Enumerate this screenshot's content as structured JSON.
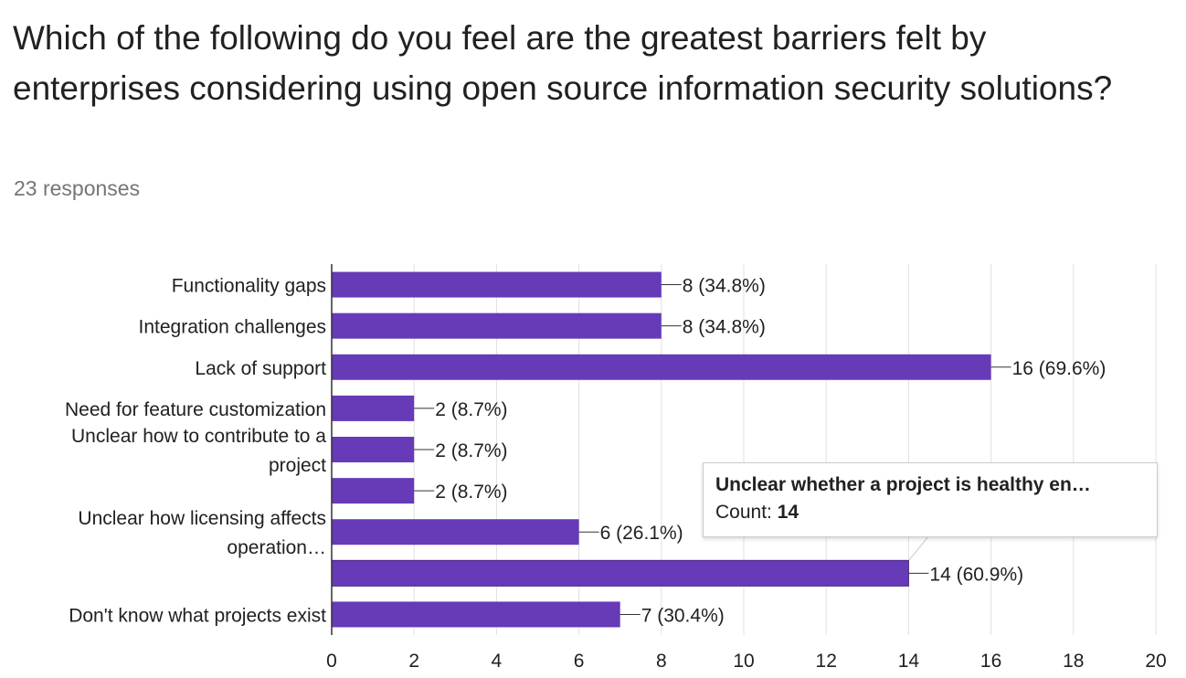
{
  "question": {
    "title": "Which of the following do you feel are the greatest barriers felt by enterprises considering using open source information security solutions?",
    "responses": "23 responses"
  },
  "colors": {
    "bar": "#673ab7",
    "grid": "#e0e0e0",
    "axis": "#333333",
    "text": "#212121"
  },
  "tooltip": {
    "title": "Unclear whether a project is healthy en…",
    "count_label": "Count:",
    "count_value": "14"
  },
  "chart_data": {
    "type": "bar",
    "orientation": "horizontal",
    "categories": [
      [
        "Functionality gaps"
      ],
      [
        "Integration challenges"
      ],
      [
        "Lack of support"
      ],
      [
        "Need for feature customization"
      ],
      [
        "Unclear how to contribute to a",
        "project"
      ],
      [],
      [
        "Unclear how licensing affects",
        "operation…"
      ],
      [],
      [
        "Don't know what projects exist"
      ]
    ],
    "values": [
      8,
      8,
      16,
      2,
      2,
      2,
      6,
      14,
      7
    ],
    "data_labels": [
      "8 (34.8%)",
      "8 (34.8%)",
      "16 (69.6%)",
      "2 (8.7%)",
      "2 (8.7%)",
      "2 (8.7%)",
      "6 (26.1%)",
      "14 (60.9%)",
      "7 (30.4%)"
    ],
    "xlim": [
      0,
      20
    ],
    "xticks": [
      "0",
      "2",
      "4",
      "6",
      "8",
      "10",
      "12",
      "14",
      "16",
      "18",
      "20"
    ],
    "grid": true,
    "highlighted_index": 7
  }
}
